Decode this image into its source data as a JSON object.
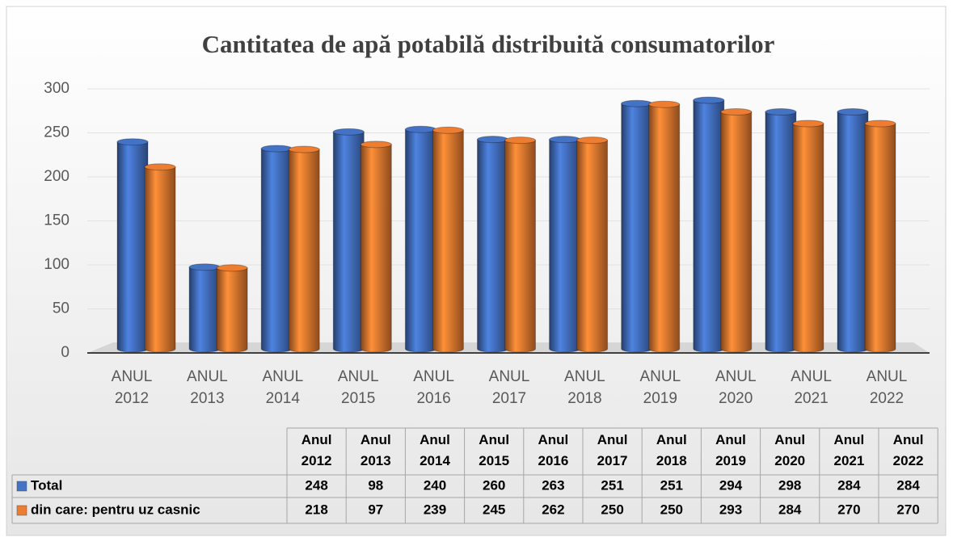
{
  "chart_data": {
    "type": "bar",
    "title": "Cantitatea de apă potabilă distribuită consumatorilor",
    "categories": [
      "ANUL 2012",
      "ANUL 2013",
      "ANUL 2014",
      "ANUL 2015",
      "ANUL 2016",
      "ANUL 2017",
      "ANUL 2018",
      "ANUL 2019",
      "ANUL 2020",
      "ANUL 2021",
      "ANUL 2022"
    ],
    "table_columns": [
      "Anul 2012",
      "Anul 2013",
      "Anul 2014",
      "Anul 2015",
      "Anul 2016",
      "Anul 2017",
      "Anul 2018",
      "Anul 2019",
      "Anul 2020",
      "Anul 2021",
      "Anul 2022"
    ],
    "series": [
      {
        "name": "Total",
        "color": "#4472c4",
        "values": [
          248,
          98,
          240,
          260,
          263,
          251,
          251,
          294,
          298,
          284,
          284
        ]
      },
      {
        "name": "din care: pentru uz casnic",
        "color": "#ed7d31",
        "values": [
          218,
          97,
          239,
          245,
          262,
          250,
          250,
          293,
          284,
          270,
          270
        ]
      }
    ],
    "ylim": [
      0,
      300
    ],
    "yticks": [
      0,
      50,
      100,
      150,
      200,
      250,
      300
    ],
    "grid": true
  }
}
